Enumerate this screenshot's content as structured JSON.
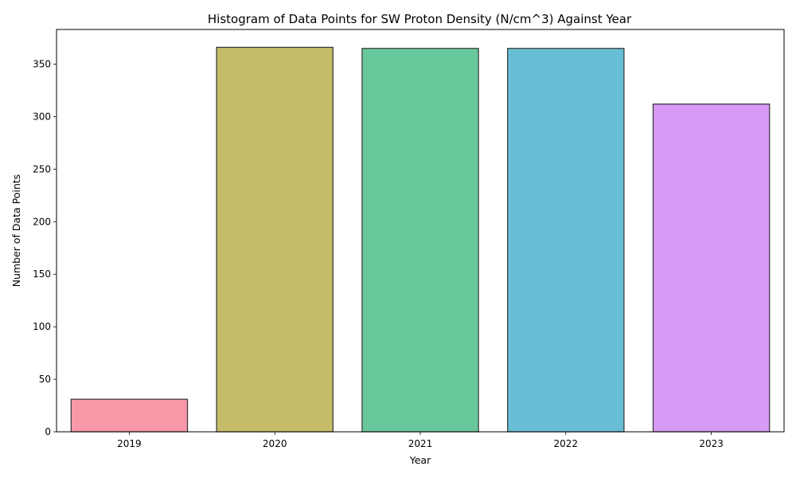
{
  "chart_data": {
    "type": "bar",
    "title": "Histogram of Data Points for SW Proton Density (N/cm^3)  Against Year",
    "xlabel": "Year",
    "ylabel": "Number of Data Points",
    "categories": [
      "2019",
      "2020",
      "2021",
      "2022",
      "2023"
    ],
    "values": [
      31,
      366,
      365,
      365,
      312
    ],
    "colors": [
      "#f7869a",
      "#bbb04f",
      "#4dbd8a",
      "#4db3cc",
      "#d088f3"
    ],
    "bar_opacity": 0.85,
    "edge_color": "#333333",
    "ylim": [
      0,
      383
    ],
    "yticks": [
      0,
      50,
      100,
      150,
      200,
      250,
      300,
      350
    ],
    "grid": false,
    "legend": "none"
  }
}
